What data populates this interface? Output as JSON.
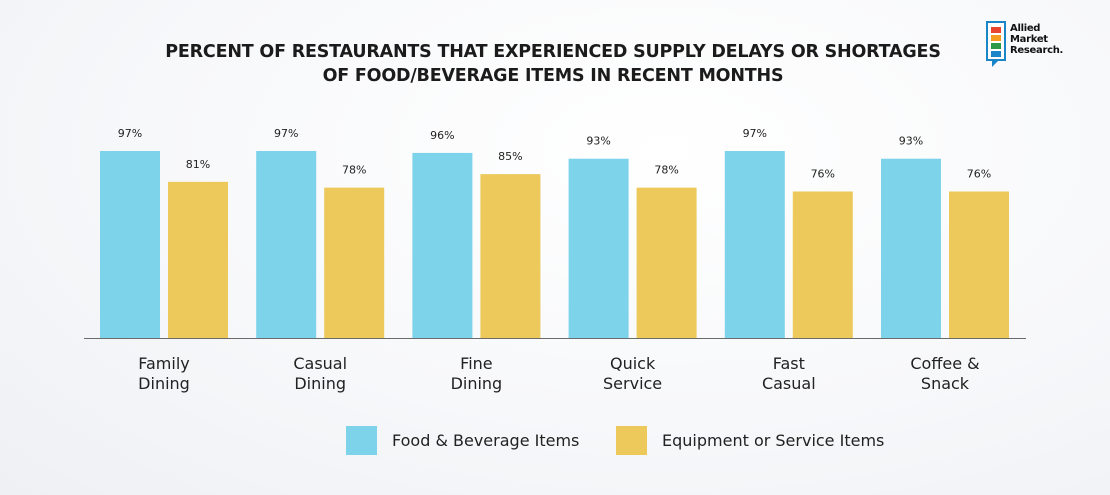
{
  "title_line1": "PERCENT OF RESTAURANTS THAT EXPERIENCED SUPPLY DELAYS OR SHORTAGES",
  "title_line2": "OF FOOD/BEVERAGE ITEMS IN RECENT MONTHS",
  "logo": {
    "line1": "Allied",
    "line2": "Market",
    "line3": "Research."
  },
  "chart_data": {
    "type": "bar",
    "categories": [
      "Family\nDining",
      "Casual\nDining",
      "Fine\nDining",
      "Quick\nService",
      "Fast\nCasual",
      "Coffee &\nSnack"
    ],
    "series": [
      {
        "name": "Food & Beverage Items",
        "color": "#7dd3ea",
        "values": [
          97,
          97,
          96,
          93,
          97,
          93
        ],
        "labels": [
          "97%",
          "97%",
          "96%",
          "93%",
          "97%",
          "93%"
        ]
      },
      {
        "name": "Equipment or Service Items",
        "color": "#ecc95a",
        "values": [
          81,
          78,
          85,
          78,
          76,
          76
        ],
        "labels": [
          "81%",
          "78%",
          "85%",
          "78%",
          "76%",
          "76%"
        ]
      }
    ],
    "title": "PERCENT OF RESTAURANTS THAT EXPERIENCED SUPPLY DELAYS OR SHORTAGES OF FOOD/BEVERAGE ITEMS IN RECENT MONTHS",
    "xlabel": "",
    "ylabel": "",
    "ylim": [
      0,
      100
    ],
    "grid": false,
    "legend_position": "bottom"
  }
}
